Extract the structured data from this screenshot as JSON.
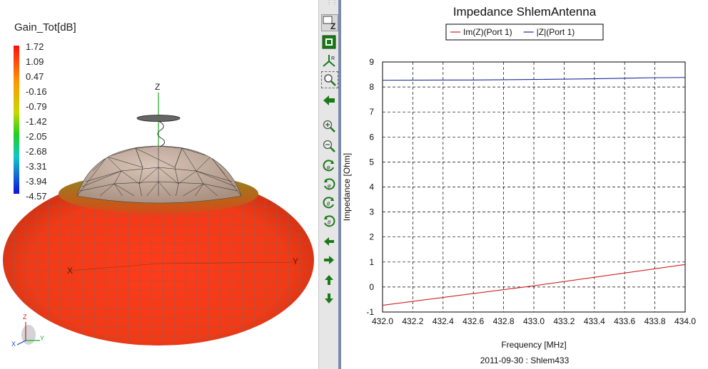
{
  "left_panel": {
    "colorbar": {
      "title": "Gain_Tot[dB]",
      "tick_labels": [
        "1.72",
        "1.09",
        "0.47",
        "-0.16",
        "-0.79",
        "-1.42",
        "-2.05",
        "-2.68",
        "-3.31",
        "-3.94",
        "-4.57"
      ]
    },
    "axis_labels": {
      "z": "Z",
      "x": "X",
      "y": "Y"
    },
    "triad_labels": {
      "z": "Z",
      "x": "X",
      "y": "Y"
    }
  },
  "toolbar": {
    "buttons": [
      "z-view-icon",
      "fit-view-icon",
      "rotate-axes-icon",
      "zoom-box-icon",
      "back-arrow-icon",
      "zoom-in-icon",
      "zoom-out-icon",
      "rotate-phi-ccw-icon",
      "rotate-phi-cw-icon",
      "rotate-theta-ccw-icon",
      "rotate-theta-cw-icon",
      "pan-left-icon",
      "pan-right-icon",
      "pan-up-icon",
      "pan-down-icon"
    ]
  },
  "plot": {
    "title": "Impedance ShlemAntenna",
    "footer": "2011-09-30 : Shlem433"
  },
  "chart_data": {
    "type": "line",
    "title": "Impedance ShlemAntenna",
    "xlabel": "Frequency [MHz]",
    "ylabel": "Impedance [Ohm]",
    "xlim": [
      432.0,
      434.0
    ],
    "ylim": [
      -1,
      9
    ],
    "x_ticks": [
      "432.0",
      "432.2",
      "432.4",
      "432.6",
      "432.8",
      "433.0",
      "433.2",
      "433.4",
      "433.6",
      "433.8",
      "434.0"
    ],
    "y_ticks": [
      "-1",
      "0",
      "1",
      "2",
      "3",
      "4",
      "5",
      "6",
      "7",
      "8",
      "9"
    ],
    "grid": true,
    "legend_position": "top",
    "series": [
      {
        "name": "Im(Z)(Port 1)",
        "color": "#cc2222",
        "x": [
          432.0,
          433.0,
          434.0
        ],
        "y": [
          -0.73,
          0.05,
          0.9
        ]
      },
      {
        "name": "|Z|(Port 1)",
        "color": "#1a2a9a",
        "x": [
          432.0,
          432.6,
          433.0,
          433.4,
          433.8,
          434.0
        ],
        "y": [
          8.27,
          8.28,
          8.3,
          8.33,
          8.37,
          8.38
        ]
      }
    ]
  }
}
